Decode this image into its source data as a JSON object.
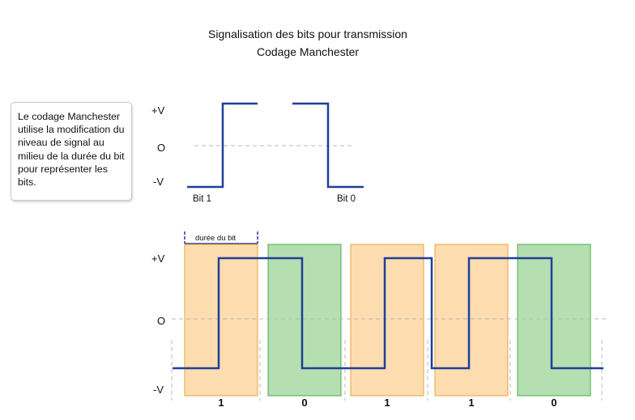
{
  "header": {
    "title": "Signalisation des bits pour transmission",
    "subtitle": "Codage Manchester"
  },
  "note": {
    "text": "Le codage Manchester utilise la modification du niveau de signal au milieu de la durée du bit pour représenter les bits."
  },
  "legend_diagram": {
    "levels": [
      "+V",
      "O",
      "-V"
    ],
    "bit1_label": "Bit 1",
    "bit0_label": "Bit 0"
  },
  "main_diagram": {
    "levels": [
      "+V",
      "O",
      "-V"
    ],
    "duration_label": "durée du bit",
    "bits": [
      "1",
      "0",
      "1",
      "1",
      "0"
    ]
  },
  "colors": {
    "signal": "#1f3f99",
    "bit1_fill": "#fddcb0",
    "bit1_border": "#e8a43c",
    "bit0_fill": "#b5dfb0",
    "bit0_border": "#4caa48",
    "dashed": "#b8b8b8"
  }
}
